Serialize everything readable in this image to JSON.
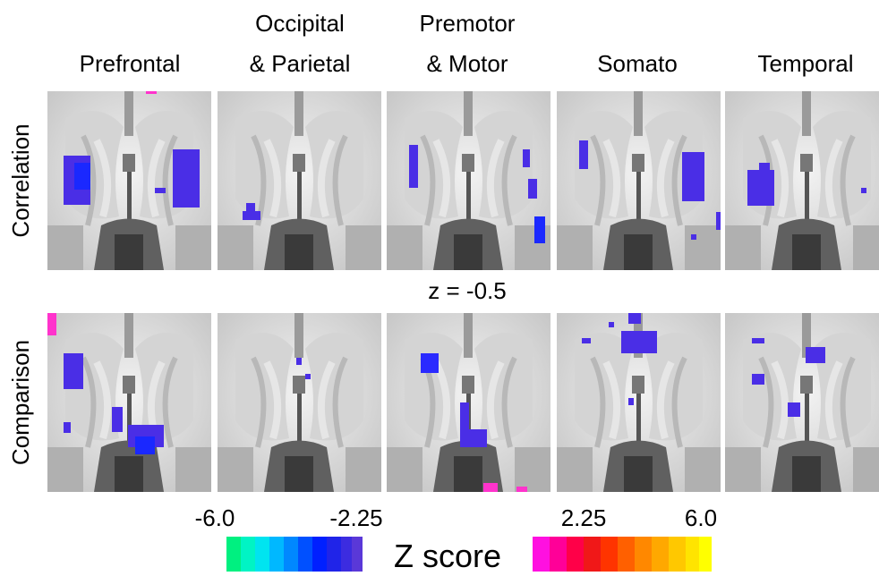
{
  "columns": [
    {
      "lines": [
        "Prefrontal"
      ]
    },
    {
      "lines": [
        "Occipital",
        "& Parietal"
      ]
    },
    {
      "lines": [
        "Premotor",
        "& Motor"
      ]
    },
    {
      "lines": [
        "Somato"
      ]
    },
    {
      "lines": [
        "Temporal"
      ]
    }
  ],
  "rows": [
    "Correlation",
    "Comparison"
  ],
  "slice_label": "z = -0.5",
  "colorbar": {
    "title": "Z score",
    "negative_labels": [
      "-6.0",
      "-2.25"
    ],
    "positive_labels": [
      "2.25",
      "6.0"
    ]
  }
}
